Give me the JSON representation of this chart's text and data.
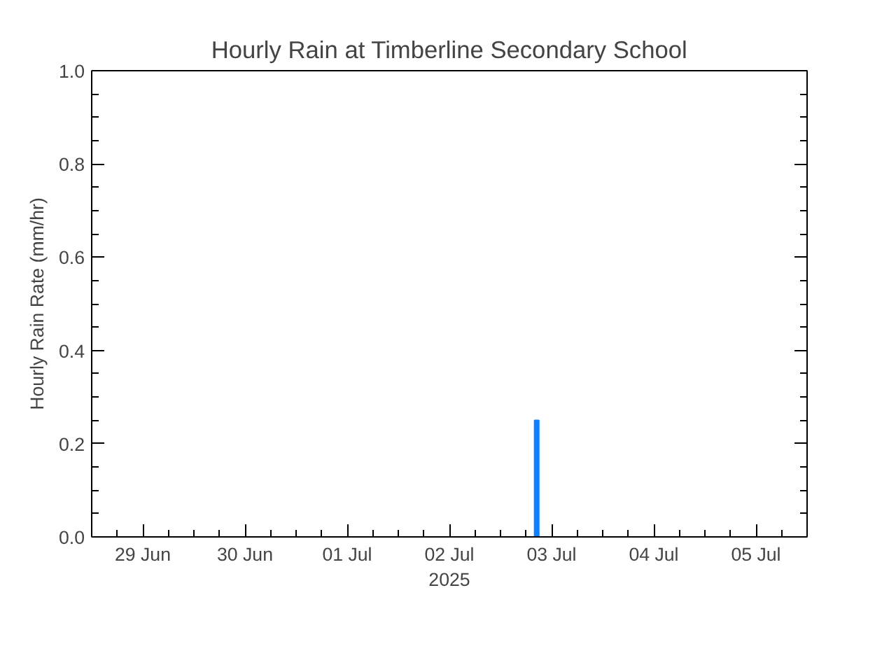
{
  "chart_data": {
    "type": "bar",
    "title": "Hourly Rain at Timberline Secondary School",
    "xlabel": "2025",
    "ylabel": "Hourly Rain Rate (mm/hr)",
    "x": [
      "2025-07-02T20:30"
    ],
    "series": [
      {
        "color": "#0f7fff",
        "values": [
          0.25
        ]
      }
    ],
    "xlim": [
      "2025-06-28T12:00",
      "2025-07-05T12:00"
    ],
    "xticks": [
      {
        "value": "2025-06-29",
        "label": "29 Jun"
      },
      {
        "value": "2025-06-30",
        "label": "30 Jun"
      },
      {
        "value": "2025-07-01",
        "label": "01 Jul"
      },
      {
        "value": "2025-07-02",
        "label": "02 Jul"
      },
      {
        "value": "2025-07-03",
        "label": "03 Jul"
      },
      {
        "value": "2025-07-04",
        "label": "04 Jul"
      },
      {
        "value": "2025-07-05",
        "label": "05 Jul"
      }
    ],
    "ylim": [
      0,
      1
    ],
    "yticks": [
      {
        "value": 0,
        "label": "0.0"
      },
      {
        "value": 0.2,
        "label": "0.2"
      },
      {
        "value": 0.4,
        "label": "0.4"
      },
      {
        "value": 0.6,
        "label": "0.6"
      },
      {
        "value": 0.8,
        "label": "0.8"
      },
      {
        "value": 1,
        "label": "1.0"
      }
    ],
    "grid": false
  }
}
